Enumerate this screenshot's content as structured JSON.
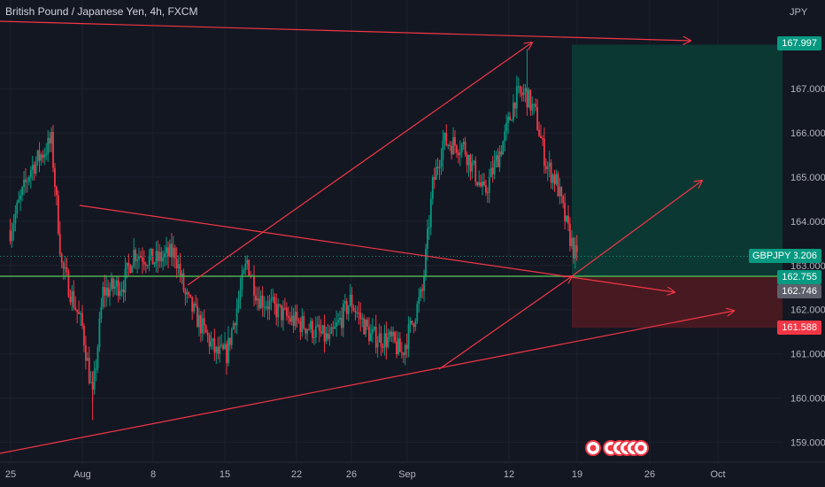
{
  "header": {
    "title": "British Pound / Japanese Yen, 4h, FXCM",
    "currency": "JPY"
  },
  "colors": {
    "background": "#131722",
    "up": "#089981",
    "down": "#f23645",
    "trendline": "#f23645",
    "support_line": "#4caf50",
    "profit_zone": "#0c3a35",
    "loss_zone": "#4a1a22",
    "grid": "#1e222d",
    "axis_text": "#b2b5be"
  },
  "price_scale": {
    "ticks": [
      "167.000",
      "166.000",
      "165.000",
      "164.000",
      "163.000",
      "162.000",
      "161.000",
      "160.000",
      "159.000"
    ]
  },
  "price_tags": [
    {
      "label": "167.997",
      "color": "#089981"
    },
    {
      "label": "163.206",
      "color": "#089981"
    },
    {
      "label": "162.755",
      "color": "#089981"
    },
    {
      "label": "162.746",
      "color": "#5d606b"
    },
    {
      "label": "161.588",
      "color": "#f23645"
    }
  ],
  "symbol_tag": "GBPJPY",
  "time_axis": {
    "labels": [
      "25",
      "Aug",
      "8",
      "15",
      "22",
      "26",
      "Sep",
      "12",
      "19",
      "26",
      "Oct"
    ]
  },
  "chart_data": {
    "type": "candlestick",
    "symbol": "GBPJPY",
    "interval": "4h",
    "ylim": [
      158.6,
      168.9
    ],
    "anchors": [
      {
        "date": "Jul 25",
        "price": 163.8
      },
      {
        "date": "Jul 27",
        "price": 165.2
      },
      {
        "date": "Jul 29",
        "price": 165.8
      },
      {
        "date": "Jul 30",
        "price": 163.0
      },
      {
        "date": "Aug 1",
        "price": 161.6
      },
      {
        "date": "Aug 2",
        "price": 160.0
      },
      {
        "date": "Aug 3",
        "price": 162.4
      },
      {
        "date": "Aug 5",
        "price": 162.6
      },
      {
        "date": "Aug 6",
        "price": 163.3
      },
      {
        "date": "Aug 8",
        "price": 163.1
      },
      {
        "date": "Aug 10",
        "price": 163.3
      },
      {
        "date": "Aug 11",
        "price": 162.3
      },
      {
        "date": "Aug 14",
        "price": 161.0
      },
      {
        "date": "Aug 15",
        "price": 161.0
      },
      {
        "date": "Aug 17",
        "price": 163.1
      },
      {
        "date": "Aug 18",
        "price": 162.3
      },
      {
        "date": "Aug 21",
        "price": 161.8
      },
      {
        "date": "Aug 23",
        "price": 161.6
      },
      {
        "date": "Aug 25",
        "price": 161.3
      },
      {
        "date": "Aug 27",
        "price": 162.2
      },
      {
        "date": "Aug 29",
        "price": 161.4
      },
      {
        "date": "Aug 31",
        "price": 161.3
      },
      {
        "date": "Sep 1",
        "price": 161.0
      },
      {
        "date": "Sep 3",
        "price": 162.4
      },
      {
        "date": "Sep 4",
        "price": 164.8
      },
      {
        "date": "Sep 5",
        "price": 165.8
      },
      {
        "date": "Sep 7",
        "price": 165.7
      },
      {
        "date": "Sep 9",
        "price": 164.6
      },
      {
        "date": "Sep 11",
        "price": 165.9
      },
      {
        "date": "Sep 12",
        "price": 166.8
      },
      {
        "date": "Sep 13",
        "price": 166.9
      },
      {
        "date": "Sep 14",
        "price": 166.4
      },
      {
        "date": "Sep 15",
        "price": 165.3
      },
      {
        "date": "Sep 16",
        "price": 164.9
      },
      {
        "date": "Sep 17",
        "price": 163.9
      },
      {
        "date": "Sep 18",
        "price": 163.1
      }
    ],
    "markers": {
      "high": {
        "date": "Sep 13",
        "price": 167.9
      },
      "low": {
        "date": "Aug 2",
        "price": 159.5
      }
    },
    "position": {
      "entry": 162.755,
      "target": 167.997,
      "stop": 161.588
    },
    "support_level": 162.755,
    "current_price": 163.206
  }
}
